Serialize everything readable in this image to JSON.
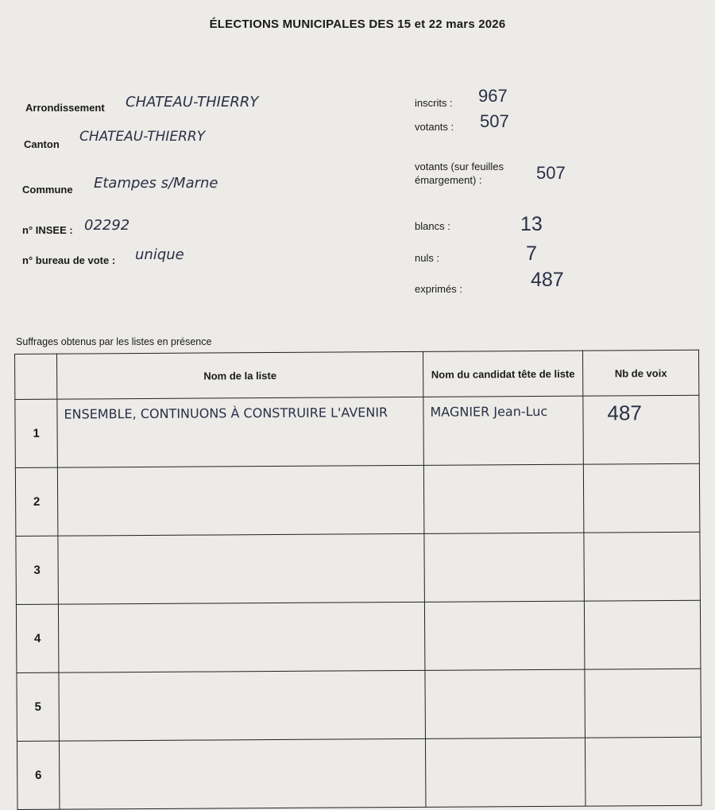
{
  "title": "ÉLECTIONS MUNICIPALES DES 15 et 22 mars 2026",
  "left_fields": [
    {
      "label": "Arrondissement",
      "value": "CHATEAU-THIERRY"
    },
    {
      "label": "Canton",
      "value": "CHATEAU-THIERRY"
    },
    {
      "label": "Commune",
      "value": "Etampes s/Marne"
    },
    {
      "label": "n° INSEE :",
      "value": "02292"
    },
    {
      "label": "n° bureau de vote :",
      "value": "unique"
    }
  ],
  "right_fields": [
    {
      "label": "inscrits :",
      "value": "967"
    },
    {
      "label": "votants :",
      "value": "507"
    },
    {
      "label": "votants (sur feuilles émargement) :",
      "value": "507"
    },
    {
      "label": "blancs :",
      "value": "13"
    },
    {
      "label": "nuls :",
      "value": "7"
    },
    {
      "label": "exprimés :",
      "value": "487"
    }
  ],
  "table": {
    "caption": "Suffrages obtenus par les listes en présence",
    "headers": [
      "Nom de la liste",
      "Nom du candidat tête de liste",
      "Nb de voix"
    ],
    "rows": [
      {
        "num": "1",
        "liste": "ENSEMBLE, CONTINUONS À CONSTRUIRE L'AVENIR",
        "candidat": "MAGNIER Jean-Luc",
        "voix": "487"
      },
      {
        "num": "2",
        "liste": "",
        "candidat": "",
        "voix": ""
      },
      {
        "num": "3",
        "liste": "",
        "candidat": "",
        "voix": ""
      },
      {
        "num": "4",
        "liste": "",
        "candidat": "",
        "voix": ""
      },
      {
        "num": "5",
        "liste": "",
        "candidat": "",
        "voix": ""
      },
      {
        "num": "6",
        "liste": "",
        "candidat": "",
        "voix": ""
      }
    ]
  }
}
